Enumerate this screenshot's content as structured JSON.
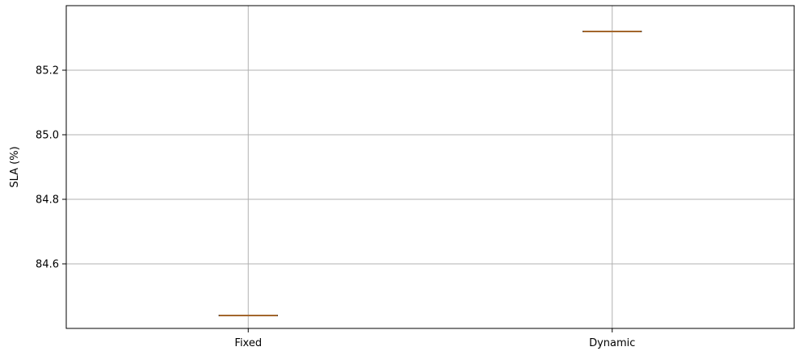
{
  "chart_data": {
    "type": "box",
    "title": "",
    "xlabel": "",
    "ylabel": "SLA (%)",
    "categories": [
      "Fixed",
      "Dynamic"
    ],
    "series": [
      {
        "values": [
          84.44,
          85.32
        ]
      }
    ],
    "ylim": [
      84.4,
      85.4
    ],
    "yticks": [
      84.6,
      84.8,
      85.0,
      85.2
    ],
    "ytick_labels": [
      "84.6",
      "84.8",
      "85.0",
      "85.2"
    ],
    "grid": true,
    "legend": "none"
  },
  "colors": {
    "median_line": "#d9883a",
    "box_edge": "#000000",
    "grid": "#b0b0b0",
    "axis": "#000000"
  }
}
